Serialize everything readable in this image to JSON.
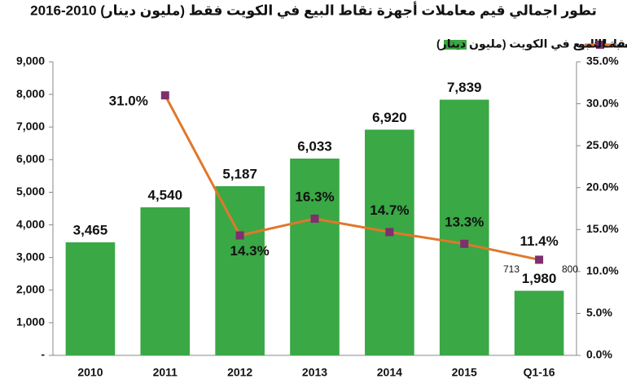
{
  "chart_data": {
    "type": "combo",
    "title": "تطور اجمالي قيم معاملات أجهزة نقاط البيع في الكويت فقط (مليون دينار) 2010-2016",
    "categories": [
      "2010",
      "2011",
      "2012",
      "2013",
      "2014",
      "2015",
      "Q1-16"
    ],
    "series": [
      {
        "name": "اجمالي قيم معاملات أجهزة نقاط البيع في الكويت (مليون دينار)",
        "type": "bar",
        "color": "#3aa845",
        "values": [
          3465,
          4540,
          5187,
          6033,
          6920,
          7839,
          1980
        ],
        "value_labels": [
          "3,465",
          "4,540",
          "5,187",
          "6,033",
          "6,920",
          "7,839",
          "1,980"
        ]
      },
      {
        "name": "نسبة النمو",
        "type": "line",
        "axis": "y2",
        "color": "#e0782c",
        "marker_color": "#7d2f6e",
        "values": [
          null,
          31.0,
          14.3,
          16.3,
          14.7,
          13.3,
          11.4
        ],
        "value_labels": [
          null,
          "31.0%",
          "14.3%",
          "16.3%",
          "14.7%",
          "13.3%",
          "11.4%"
        ]
      }
    ],
    "ylim": [
      0,
      9000
    ],
    "yticks": [
      {
        "value": 0,
        "label": "-"
      },
      {
        "value": 1000,
        "label": "1,000"
      },
      {
        "value": 2000,
        "label": "2,000"
      },
      {
        "value": 3000,
        "label": "3,000"
      },
      {
        "value": 4000,
        "label": "4,000"
      },
      {
        "value": 5000,
        "label": "5,000"
      },
      {
        "value": 6000,
        "label": "6,000"
      },
      {
        "value": 7000,
        "label": "7,000"
      },
      {
        "value": 8000,
        "label": "8,000"
      },
      {
        "value": 9000,
        "label": "9,000"
      }
    ],
    "y2lim": [
      0,
      35
    ],
    "y2ticks": [
      {
        "value": 0,
        "label": "0.0%"
      },
      {
        "value": 5,
        "label": "5.0%"
      },
      {
        "value": 10,
        "label": "10.0%"
      },
      {
        "value": 15,
        "label": "15.0%"
      },
      {
        "value": 20,
        "label": "20.0%"
      },
      {
        "value": 25,
        "label": "25.0%"
      },
      {
        "value": 30,
        "label": "30.0%"
      },
      {
        "value": 35,
        "label": "35.0%"
      }
    ],
    "annotations": [
      "713",
      "800"
    ]
  }
}
